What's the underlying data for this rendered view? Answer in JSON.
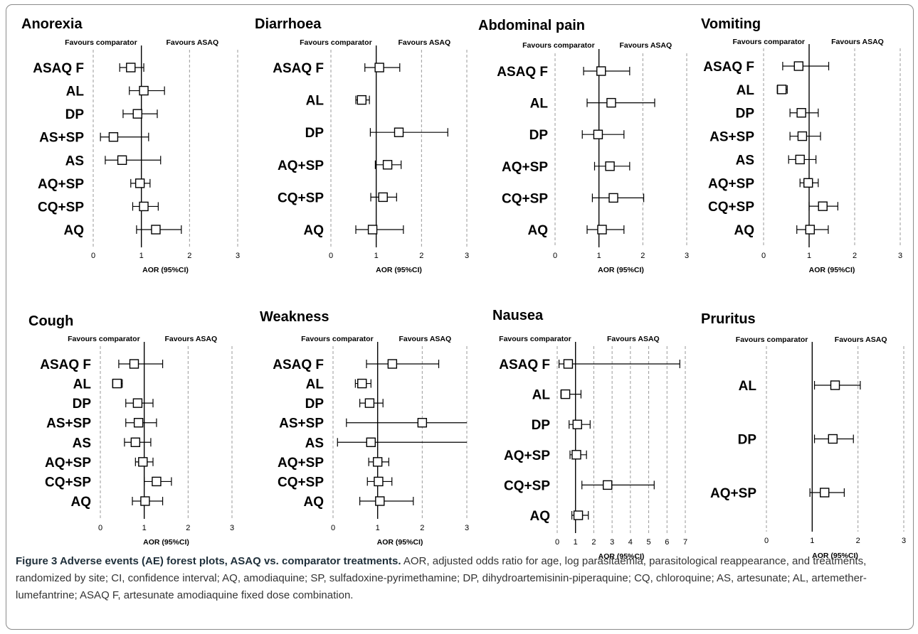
{
  "accent_color": "#1f2f3a",
  "caption": {
    "label": "Figure 3 Adverse events (AE) forest plots, ASAQ vs. comparator treatments.",
    "text": " AOR, adjusted odds ratio for age, log parasitaemia, parasitological reappearance, and treatments, randomized by site; CI, confidence interval; AQ, amodiaquine; SP, sulfadoxine-pyrimethamine; DP, dihydroartemisinin-piperaquine; CQ, chloroquine; AS, artesunate; AL, artemether-lumefantrine; ASAQ F, artesunate amodiaquine fixed dose combination."
  },
  "chart_data": [
    {
      "type": "forest",
      "title": "Anorexia",
      "left_header": "Favours comparator",
      "right_header": "Favours ASAQ",
      "xlabel": "AOR (95%CI)",
      "xlim": [
        0,
        3
      ],
      "xticks": [
        0,
        1,
        2,
        3
      ],
      "reference_line": 1,
      "rows": [
        {
          "label": "ASAQ F",
          "or": 0.78,
          "lo": 0.55,
          "hi": 1.05
        },
        {
          "label": "AL",
          "or": 1.05,
          "lo": 0.75,
          "hi": 1.48
        },
        {
          "label": "DP",
          "or": 0.92,
          "lo": 0.62,
          "hi": 1.33
        },
        {
          "label": "AS+SP",
          "or": 0.42,
          "lo": 0.15,
          "hi": 1.15
        },
        {
          "label": "AS",
          "or": 0.6,
          "lo": 0.25,
          "hi": 1.4
        },
        {
          "label": "AQ+SP",
          "or": 0.97,
          "lo": 0.78,
          "hi": 1.18
        },
        {
          "label": "CQ+SP",
          "or": 1.05,
          "lo": 0.82,
          "hi": 1.35
        },
        {
          "label": "AQ",
          "or": 1.3,
          "lo": 0.9,
          "hi": 1.83
        }
      ]
    },
    {
      "type": "forest",
      "title": "Diarrhoea",
      "left_header": "Favours comparator",
      "right_header": "Favours ASAQ",
      "xlabel": "AOR (95%CI)",
      "xlim": [
        0,
        3
      ],
      "xticks": [
        0,
        1,
        2,
        3
      ],
      "reference_line": 1,
      "rows": [
        {
          "label": "ASAQ F",
          "or": 1.07,
          "lo": 0.75,
          "hi": 1.52
        },
        {
          "label": "AL",
          "or": 0.68,
          "lo": 0.55,
          "hi": 0.85
        },
        {
          "label": "DP",
          "or": 1.5,
          "lo": 0.87,
          "hi": 2.58
        },
        {
          "label": "AQ+SP",
          "or": 1.25,
          "lo": 0.98,
          "hi": 1.55
        },
        {
          "label": "CQ+SP",
          "or": 1.15,
          "lo": 0.88,
          "hi": 1.45
        },
        {
          "label": "AQ",
          "or": 0.92,
          "lo": 0.55,
          "hi": 1.6
        }
      ]
    },
    {
      "type": "forest",
      "title": "Abdominal pain",
      "left_header": "Favours comparator",
      "right_header": "Favours ASAQ",
      "xlabel": "AOR (95%CI)",
      "xlim": [
        0,
        3
      ],
      "xticks": [
        0,
        1,
        2,
        3
      ],
      "reference_line": 1,
      "rows": [
        {
          "label": "ASAQ F",
          "or": 1.05,
          "lo": 0.65,
          "hi": 1.7
        },
        {
          "label": "AL",
          "or": 1.28,
          "lo": 0.73,
          "hi": 2.27
        },
        {
          "label": "DP",
          "or": 0.98,
          "lo": 0.62,
          "hi": 1.57
        },
        {
          "label": "AQ+SP",
          "or": 1.25,
          "lo": 0.9,
          "hi": 1.7
        },
        {
          "label": "CQ+SP",
          "or": 1.33,
          "lo": 0.85,
          "hi": 2.02
        },
        {
          "label": "AQ",
          "or": 1.07,
          "lo": 0.73,
          "hi": 1.57
        }
      ]
    },
    {
      "type": "forest",
      "title": "Vomiting",
      "left_header": "Favours comparator",
      "right_header": "Favours ASAQ",
      "xlabel": "AOR (95%CI)",
      "xlim": [
        0,
        3
      ],
      "xticks": [
        0,
        1,
        2,
        3
      ],
      "reference_line": 1,
      "rows": [
        {
          "label": "ASAQ F",
          "or": 0.77,
          "lo": 0.42,
          "hi": 1.43
        },
        {
          "label": "AL",
          "or": 0.4,
          "lo": 0.3,
          "hi": 0.52
        },
        {
          "label": "DP",
          "or": 0.83,
          "lo": 0.58,
          "hi": 1.2
        },
        {
          "label": "AS+SP",
          "or": 0.85,
          "lo": 0.58,
          "hi": 1.25
        },
        {
          "label": "AS",
          "or": 0.8,
          "lo": 0.55,
          "hi": 1.15
        },
        {
          "label": "AQ+SP",
          "or": 0.98,
          "lo": 0.8,
          "hi": 1.2
        },
        {
          "label": "CQ+SP",
          "or": 1.3,
          "lo": 1.0,
          "hi": 1.63
        },
        {
          "label": "AQ",
          "or": 1.02,
          "lo": 0.73,
          "hi": 1.42
        }
      ]
    },
    {
      "type": "forest",
      "title": "Cough",
      "left_header": "Favours comparator",
      "right_header": "Favours ASAQ",
      "xlabel": "AOR (95%CI)",
      "xlim": [
        0,
        3
      ],
      "xticks": [
        0,
        1,
        2,
        3
      ],
      "reference_line": 1,
      "rows": [
        {
          "label": "ASAQ F",
          "or": 0.77,
          "lo": 0.42,
          "hi": 1.42
        },
        {
          "label": "AL",
          "or": 0.38,
          "lo": 0.28,
          "hi": 0.5
        },
        {
          "label": "DP",
          "or": 0.85,
          "lo": 0.58,
          "hi": 1.2
        },
        {
          "label": "AS+SP",
          "or": 0.87,
          "lo": 0.58,
          "hi": 1.28
        },
        {
          "label": "AS",
          "or": 0.8,
          "lo": 0.55,
          "hi": 1.15
        },
        {
          "label": "AQ+SP",
          "or": 0.97,
          "lo": 0.8,
          "hi": 1.2
        },
        {
          "label": "CQ+SP",
          "or": 1.28,
          "lo": 1.0,
          "hi": 1.62
        },
        {
          "label": "AQ",
          "or": 1.02,
          "lo": 0.73,
          "hi": 1.42
        }
      ]
    },
    {
      "type": "forest",
      "title": "Weakness",
      "left_header": "Favours comparator",
      "right_header": "Favours ASAQ",
      "xlabel": "AOR (95%CI)",
      "xlim": [
        0,
        3
      ],
      "xticks": [
        0,
        1,
        2,
        3
      ],
      "reference_line": 1,
      "rows": [
        {
          "label": "ASAQ F",
          "or": 1.33,
          "lo": 0.75,
          "hi": 2.37
        },
        {
          "label": "AL",
          "or": 0.65,
          "lo": 0.5,
          "hi": 0.85
        },
        {
          "label": "DP",
          "or": 0.82,
          "lo": 0.6,
          "hi": 1.12
        },
        {
          "label": "AS+SP",
          "or": 2.0,
          "lo": 0.3,
          "hi": 3.1
        },
        {
          "label": "AS",
          "or": 0.85,
          "lo": 0.1,
          "hi": 3.1
        },
        {
          "label": "AQ+SP",
          "or": 1.0,
          "lo": 0.8,
          "hi": 1.25
        },
        {
          "label": "CQ+SP",
          "or": 1.02,
          "lo": 0.77,
          "hi": 1.32
        },
        {
          "label": "AQ",
          "or": 1.05,
          "lo": 0.6,
          "hi": 1.8
        }
      ]
    },
    {
      "type": "forest",
      "title": "Nausea",
      "left_header": "Favours comparator",
      "right_header": "Favours ASAQ",
      "xlabel": "AOR (95%CI)",
      "xlim": [
        0,
        7
      ],
      "xticks": [
        0,
        1,
        2,
        3,
        4,
        5,
        6,
        7
      ],
      "reference_line": 1,
      "rows": [
        {
          "label": "ASAQ F",
          "or": 0.6,
          "lo": 0.1,
          "hi": 6.7
        },
        {
          "label": "AL",
          "or": 0.45,
          "lo": 0.2,
          "hi": 1.3
        },
        {
          "label": "DP",
          "or": 1.1,
          "lo": 0.65,
          "hi": 1.8
        },
        {
          "label": "AQ+SP",
          "or": 1.05,
          "lo": 0.7,
          "hi": 1.6
        },
        {
          "label": "CQ+SP",
          "or": 2.75,
          "lo": 1.35,
          "hi": 5.3
        },
        {
          "label": "AQ",
          "or": 1.15,
          "lo": 0.8,
          "hi": 1.7
        }
      ]
    },
    {
      "type": "forest",
      "title": "Pruritus",
      "left_header": "Favours comparator",
      "right_header": "Favours ASAQ",
      "xlabel": "AOR (95%CI)",
      "xlim": [
        0,
        3
      ],
      "xticks": [
        0,
        1,
        2,
        3
      ],
      "reference_line": 1,
      "rows": [
        {
          "label": "AL",
          "or": 1.5,
          "lo": 1.05,
          "hi": 2.05
        },
        {
          "label": "DP",
          "or": 1.45,
          "lo": 1.05,
          "hi": 1.9
        },
        {
          "label": "AQ+SP",
          "or": 1.27,
          "lo": 0.95,
          "hi": 1.7
        }
      ]
    }
  ]
}
